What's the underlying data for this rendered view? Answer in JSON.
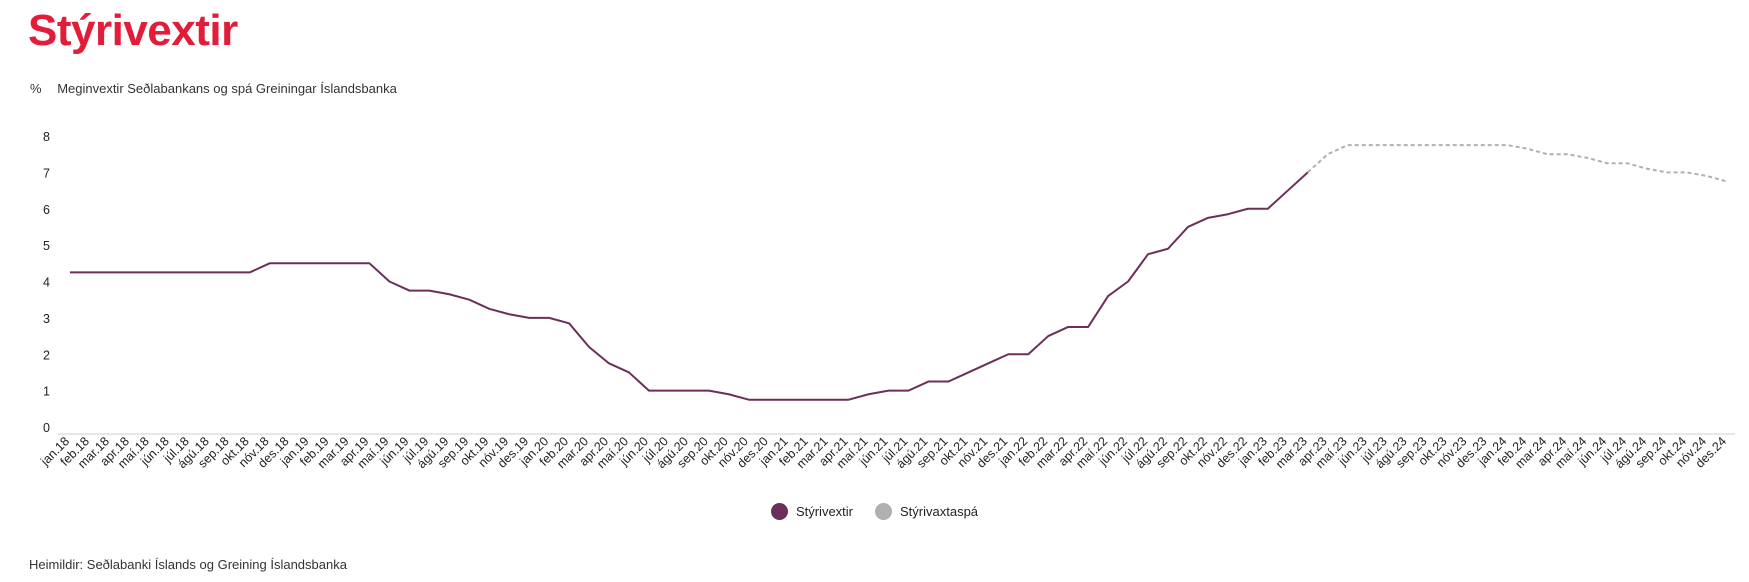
{
  "page_title": "Stýrivextir",
  "subtitle_unit": "%",
  "subtitle_text": "Meginvextir Seðlabankans og spá Greiningar Íslandsbanka",
  "source_text": "Heimildir: Seðlabanki Íslands og Greining Íslandsbanka",
  "colors": {
    "title": "#e11d3a",
    "actual": "#6b2f5a",
    "forecast": "#b0b0b0"
  },
  "chart_data": {
    "type": "line",
    "ylim": [
      0,
      8
    ],
    "yticks": [
      0,
      1,
      2,
      3,
      4,
      5,
      6,
      7,
      8
    ],
    "grid": false,
    "legend_position": "bottom-center",
    "categories": [
      "jan.18",
      "feb.18",
      "mar.18",
      "apr.18",
      "maí.18",
      "jún.18",
      "júl.18",
      "ágú.18",
      "sep.18",
      "okt.18",
      "nóv.18",
      "des.18",
      "jan.19",
      "feb.19",
      "mar.19",
      "apr.19",
      "maí.19",
      "jún.19",
      "júl.19",
      "ágú.19",
      "sep.19",
      "okt.19",
      "nóv.19",
      "des.19",
      "jan.20",
      "feb.20",
      "mar.20",
      "apr.20",
      "maí.20",
      "jún.20",
      "júl.20",
      "ágú.20",
      "sep.20",
      "okt.20",
      "nóv.20",
      "des.20",
      "jan.21",
      "feb.21",
      "mar.21",
      "apr.21",
      "maí.21",
      "jún.21",
      "júl.21",
      "ágú.21",
      "sep.21",
      "okt.21",
      "nóv.21",
      "des.21",
      "jan.22",
      "feb.22",
      "mar.22",
      "apr.22",
      "maí.22",
      "jún.22",
      "júl.22",
      "ágú.22",
      "sep.22",
      "okt.22",
      "nóv.22",
      "des.22",
      "jan.23",
      "feb.23",
      "mar.23",
      "apr.23",
      "maí.23",
      "jún.23",
      "júl.23",
      "ágú.23",
      "sep.23",
      "okt.23",
      "nóv.23",
      "des.23",
      "jan.24",
      "feb.24",
      "mar.24",
      "apr.24",
      "maí.24",
      "jún.24",
      "júl.24",
      "ágú.24",
      "sep.24",
      "okt.24",
      "nóv.24",
      "des.24"
    ],
    "series": [
      {
        "name": "Stýrivextir",
        "color": "#6b2f5a",
        "style": "solid",
        "values": [
          4.25,
          4.25,
          4.25,
          4.25,
          4.25,
          4.25,
          4.25,
          4.25,
          4.25,
          4.25,
          4.5,
          4.5,
          4.5,
          4.5,
          4.5,
          4.5,
          4.0,
          3.75,
          3.75,
          3.65,
          3.5,
          3.25,
          3.1,
          3.0,
          3.0,
          2.85,
          2.2,
          1.75,
          1.5,
          1.0,
          1.0,
          1.0,
          1.0,
          0.9,
          0.75,
          0.75,
          0.75,
          0.75,
          0.75,
          0.75,
          0.9,
          1.0,
          1.0,
          1.25,
          1.25,
          1.5,
          1.75,
          2.0,
          2.0,
          2.5,
          2.75,
          2.75,
          3.6,
          4.0,
          4.75,
          4.9,
          5.5,
          5.75,
          5.85,
          6.0,
          6.0,
          6.5,
          7.0,
          null,
          null,
          null,
          null,
          null,
          null,
          null,
          null,
          null,
          null,
          null,
          null,
          null,
          null,
          null,
          null,
          null,
          null,
          null,
          null,
          null
        ]
      },
      {
        "name": "Stýrivaxtaspá",
        "color": "#b0b0b0",
        "style": "dashed",
        "values": [
          null,
          null,
          null,
          null,
          null,
          null,
          null,
          null,
          null,
          null,
          null,
          null,
          null,
          null,
          null,
          null,
          null,
          null,
          null,
          null,
          null,
          null,
          null,
          null,
          null,
          null,
          null,
          null,
          null,
          null,
          null,
          null,
          null,
          null,
          null,
          null,
          null,
          null,
          null,
          null,
          null,
          null,
          null,
          null,
          null,
          null,
          null,
          null,
          null,
          null,
          null,
          null,
          null,
          null,
          null,
          null,
          null,
          null,
          null,
          null,
          null,
          null,
          7.0,
          7.5,
          7.75,
          7.75,
          7.75,
          7.75,
          7.75,
          7.75,
          7.75,
          7.75,
          7.75,
          7.65,
          7.5,
          7.5,
          7.4,
          7.25,
          7.25,
          7.1,
          7.0,
          7.0,
          6.9,
          6.75
        ]
      }
    ]
  }
}
